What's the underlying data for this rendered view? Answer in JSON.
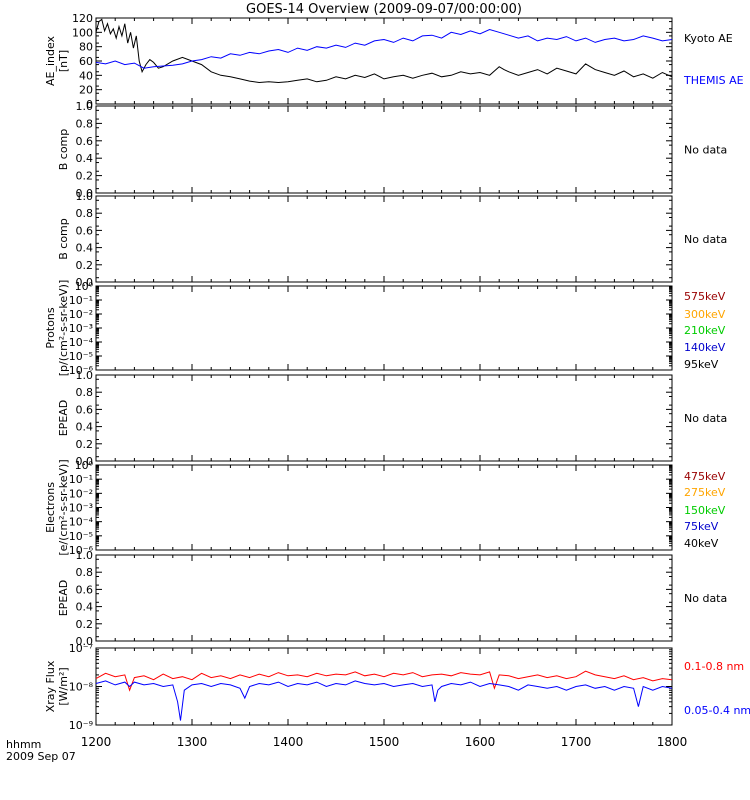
{
  "title": "GOES-14 Overview (2009-09-07/00:00:00)",
  "colors": {
    "black": "#000000",
    "blue": "#0000ff",
    "red": "#ff0000",
    "darkred": "#990000",
    "orange": "#ffa500",
    "green": "#00cc00"
  },
  "x_axis": {
    "ticks": [
      "1200",
      "1300",
      "1400",
      "1500",
      "1600",
      "1700",
      "1800"
    ],
    "label_line1": "hhmm",
    "label_line2": "2009 Sep 07"
  },
  "no_data_text": "No data",
  "panels": [
    {
      "id": "ae",
      "ylabel1": "AE_index",
      "ylabel2": "[nT]",
      "ticks": [
        "0",
        "20",
        "40",
        "60",
        "80",
        "100",
        "120"
      ],
      "legend": [
        {
          "text": "Kyoto AE",
          "color": "#000000"
        },
        {
          "text": "THEMIS AE",
          "color": "#0000ff"
        }
      ]
    },
    {
      "id": "bcomp1",
      "ylabel1": "B comp",
      "ticks": [
        "0.0",
        "0.2",
        "0.4",
        "0.6",
        "0.8",
        "1.0"
      ],
      "no_data": true
    },
    {
      "id": "bcomp2",
      "ylabel1": "B comp",
      "ticks": [
        "0.0",
        "0.2",
        "0.4",
        "0.6",
        "0.8",
        "1.0"
      ],
      "no_data": true
    },
    {
      "id": "protons",
      "ylabel1": "Protons",
      "ylabel2": "[p/(cm²-s-sr-keV)]",
      "ticks": [
        "10⁻⁶",
        "10⁻⁵",
        "10⁻⁴",
        "10⁻³",
        "10⁻²",
        "10⁻¹",
        "10⁰"
      ],
      "legend": [
        {
          "text": "575keV",
          "color": "#990000"
        },
        {
          "text": "300keV",
          "color": "#ffa500"
        },
        {
          "text": "210keV",
          "color": "#00cc00"
        },
        {
          "text": "140keV",
          "color": "#0000cc"
        },
        {
          "text": "95keV",
          "color": "#000000"
        }
      ]
    },
    {
      "id": "epead1",
      "ylabel1": "EPEAD",
      "ticks": [
        "0.0",
        "0.2",
        "0.4",
        "0.6",
        "0.8",
        "1.0"
      ],
      "no_data": true
    },
    {
      "id": "electrons",
      "ylabel1": "Electrons",
      "ylabel2": "[e/(cm²-s-sr-keV)]",
      "ticks": [
        "10⁻⁶",
        "10⁻⁵",
        "10⁻⁴",
        "10⁻³",
        "10⁻²",
        "10⁻¹",
        "10⁰"
      ],
      "legend": [
        {
          "text": "475keV",
          "color": "#990000"
        },
        {
          "text": "275keV",
          "color": "#ffa500"
        },
        {
          "text": "150keV",
          "color": "#00cc00"
        },
        {
          "text": "75keV",
          "color": "#0000cc"
        },
        {
          "text": "40keV",
          "color": "#000000"
        }
      ]
    },
    {
      "id": "epead2",
      "ylabel1": "EPEAD",
      "ticks": [
        "0.0",
        "0.2",
        "0.4",
        "0.6",
        "0.8",
        "1.0"
      ],
      "no_data": true
    },
    {
      "id": "xray",
      "ylabel1": "Xray Flux",
      "ylabel2": "[W/m²]",
      "ticks": [
        "10⁻⁹",
        "10⁻⁸",
        "10⁻⁷"
      ],
      "legend": [
        {
          "text": "0.1-0.8 nm",
          "color": "#ff0000"
        },
        {
          "text": "0.05-0.4 nm",
          "color": "#0000ff"
        }
      ]
    }
  ],
  "chart_data": [
    {
      "type": "line",
      "title": "GOES-14 Overview (2009-09-07/00:00:00)",
      "xlabel": "hhmm",
      "ylabel": "AE_index [nT]",
      "xlim": [
        1200,
        1800
      ],
      "ylim": [
        0,
        120
      ],
      "series": [
        {
          "name": "Kyoto AE",
          "color": "#000000",
          "x": [
            1200,
            1203,
            1206,
            1209,
            1212,
            1215,
            1218,
            1221,
            1224,
            1227,
            1230,
            1233,
            1236,
            1239,
            1242,
            1245,
            1248,
            1252,
            1256,
            1260,
            1265,
            1270,
            1280,
            1290,
            1300,
            1310,
            1320,
            1330,
            1340,
            1350,
            1360,
            1370,
            1380,
            1390,
            1400,
            1410,
            1420,
            1430,
            1440,
            1450,
            1460,
            1470,
            1480,
            1490,
            1500,
            1510,
            1520,
            1530,
            1540,
            1550,
            1560,
            1570,
            1580,
            1590,
            1600,
            1610,
            1615,
            1620,
            1625,
            1630,
            1640,
            1650,
            1660,
            1670,
            1680,
            1690,
            1700,
            1710,
            1720,
            1730,
            1740,
            1750,
            1760,
            1770,
            1780,
            1790,
            1800
          ],
          "y": [
            100,
            115,
            118,
            102,
            112,
            98,
            105,
            92,
            108,
            95,
            112,
            85,
            100,
            78,
            95,
            60,
            45,
            55,
            62,
            58,
            50,
            52,
            60,
            65,
            60,
            55,
            45,
            40,
            38,
            35,
            32,
            30,
            31,
            30,
            31,
            33,
            35,
            31,
            33,
            38,
            35,
            40,
            37,
            42,
            35,
            38,
            40,
            36,
            40,
            43,
            38,
            40,
            45,
            42,
            44,
            40,
            46,
            52,
            48,
            45,
            40,
            44,
            48,
            42,
            50,
            46,
            42,
            56,
            48,
            44,
            40,
            46,
            38,
            42,
            36,
            44,
            38
          ]
        },
        {
          "name": "THEMIS AE",
          "color": "#0000ff",
          "x": [
            1200,
            1210,
            1220,
            1230,
            1240,
            1250,
            1260,
            1270,
            1280,
            1290,
            1300,
            1310,
            1320,
            1330,
            1340,
            1350,
            1360,
            1370,
            1380,
            1390,
            1400,
            1410,
            1420,
            1430,
            1440,
            1450,
            1460,
            1470,
            1480,
            1490,
            1500,
            1510,
            1520,
            1530,
            1540,
            1550,
            1560,
            1570,
            1580,
            1590,
            1600,
            1610,
            1620,
            1630,
            1640,
            1650,
            1660,
            1670,
            1680,
            1690,
            1700,
            1710,
            1720,
            1730,
            1740,
            1750,
            1760,
            1770,
            1780,
            1790,
            1800
          ],
          "y": [
            58,
            56,
            60,
            55,
            57,
            50,
            52,
            53,
            54,
            56,
            60,
            62,
            66,
            64,
            70,
            68,
            72,
            70,
            74,
            76,
            72,
            78,
            75,
            80,
            78,
            82,
            79,
            85,
            82,
            88,
            90,
            86,
            92,
            88,
            95,
            96,
            92,
            100,
            97,
            102,
            98,
            104,
            100,
            96,
            92,
            95,
            88,
            92,
            90,
            94,
            88,
            92,
            86,
            90,
            92,
            88,
            90,
            95,
            92,
            88,
            90
          ]
        }
      ]
    },
    {
      "type": "line",
      "ylabel": "B comp",
      "ylim": [
        0,
        1
      ],
      "series": [],
      "note": "No data"
    },
    {
      "type": "line",
      "ylabel": "B comp",
      "ylim": [
        0,
        1
      ],
      "series": [],
      "note": "No data"
    },
    {
      "type": "line",
      "ylabel": "Protons [p/(cm²-s-sr-keV)]",
      "yscale": "log",
      "ylim": [
        1e-06,
        1
      ],
      "series": [
        {
          "name": "575keV",
          "color": "#990000",
          "values": []
        },
        {
          "name": "300keV",
          "color": "#ffa500",
          "values": []
        },
        {
          "name": "210keV",
          "color": "#00cc00",
          "values": []
        },
        {
          "name": "140keV",
          "color": "#0000cc",
          "values": []
        },
        {
          "name": "95keV",
          "color": "#000000",
          "values": []
        }
      ]
    },
    {
      "type": "line",
      "ylabel": "EPEAD",
      "ylim": [
        0,
        1
      ],
      "series": [],
      "note": "No data"
    },
    {
      "type": "line",
      "ylabel": "Electrons [e/(cm²-s-sr-keV)]",
      "yscale": "log",
      "ylim": [
        1e-06,
        1
      ],
      "series": [
        {
          "name": "475keV",
          "color": "#990000",
          "values": []
        },
        {
          "name": "275keV",
          "color": "#ffa500",
          "values": []
        },
        {
          "name": "150keV",
          "color": "#00cc00",
          "values": []
        },
        {
          "name": "75keV",
          "color": "#0000cc",
          "values": []
        },
        {
          "name": "40keV",
          "color": "#000000",
          "values": []
        }
      ]
    },
    {
      "type": "line",
      "ylabel": "EPEAD",
      "ylim": [
        0,
        1
      ],
      "series": [],
      "note": "No data"
    },
    {
      "type": "line",
      "xlabel": "hhmm",
      "ylabel": "Xray Flux [W/m²]",
      "yscale": "log",
      "xlim": [
        1200,
        1800
      ],
      "ylim": [
        1e-09,
        1e-07
      ],
      "series": [
        {
          "name": "0.1-0.8 nm",
          "color": "#ff0000",
          "x": [
            1200,
            1210,
            1220,
            1230,
            1235,
            1240,
            1250,
            1260,
            1270,
            1280,
            1290,
            1300,
            1310,
            1320,
            1330,
            1340,
            1350,
            1360,
            1370,
            1380,
            1390,
            1400,
            1410,
            1420,
            1430,
            1440,
            1450,
            1460,
            1470,
            1480,
            1490,
            1500,
            1510,
            1520,
            1530,
            1540,
            1550,
            1560,
            1570,
            1580,
            1590,
            1600,
            1610,
            1615,
            1620,
            1630,
            1640,
            1650,
            1660,
            1670,
            1680,
            1690,
            1700,
            1710,
            1720,
            1730,
            1740,
            1750,
            1760,
            1770,
            1780,
            1790,
            1800
          ],
          "y": [
            1.6e-08,
            2.2e-08,
            1.8e-08,
            2e-08,
            8e-09,
            1.7e-08,
            1.9e-08,
            1.5e-08,
            2.1e-08,
            1.6e-08,
            1.8e-08,
            1.5e-08,
            2.2e-08,
            1.7e-08,
            1.9e-08,
            1.6e-08,
            2e-08,
            1.7e-08,
            2.1e-08,
            1.8e-08,
            2.3e-08,
            1.9e-08,
            2e-08,
            1.8e-08,
            2.2e-08,
            1.9e-08,
            2.1e-08,
            2e-08,
            2.4e-08,
            1.9e-08,
            2.1e-08,
            1.8e-08,
            2.2e-08,
            2e-08,
            2.3e-08,
            1.8e-08,
            2e-08,
            2.1e-08,
            1.9e-08,
            2.3e-08,
            2.1e-08,
            2e-08,
            2.4e-08,
            9e-09,
            2e-08,
            1.9e-08,
            1.6e-08,
            1.8e-08,
            2e-08,
            1.7e-08,
            1.9e-08,
            1.6e-08,
            1.8e-08,
            2.5e-08,
            2e-08,
            1.8e-08,
            1.6e-08,
            1.9e-08,
            1.5e-08,
            1.7e-08,
            1.4e-08,
            1.6e-08,
            1.5e-08
          ]
        },
        {
          "name": "0.05-0.4 nm",
          "color": "#0000ff",
          "x": [
            1200,
            1210,
            1220,
            1230,
            1235,
            1240,
            1250,
            1260,
            1270,
            1280,
            1285,
            1288,
            1292,
            1300,
            1310,
            1320,
            1330,
            1340,
            1350,
            1355,
            1360,
            1370,
            1380,
            1390,
            1400,
            1410,
            1420,
            1430,
            1440,
            1450,
            1460,
            1470,
            1480,
            1490,
            1500,
            1510,
            1520,
            1530,
            1540,
            1550,
            1553,
            1556,
            1560,
            1570,
            1580,
            1590,
            1600,
            1610,
            1620,
            1630,
            1640,
            1650,
            1660,
            1670,
            1680,
            1690,
            1700,
            1710,
            1720,
            1730,
            1740,
            1750,
            1760,
            1765,
            1770,
            1780,
            1790,
            1800
          ],
          "y": [
            1.2e-08,
            1.4e-08,
            1.1e-08,
            1.3e-08,
            1e-08,
            1.3e-08,
            1.1e-08,
            1.2e-08,
            1e-08,
            1.1e-08,
            4e-09,
            1.3e-09,
            8e-09,
            1.1e-08,
            1.2e-08,
            1e-08,
            1.2e-08,
            1.1e-08,
            9e-09,
            5e-09,
            1e-08,
            1.2e-08,
            1.1e-08,
            1.3e-08,
            1e-08,
            1.2e-08,
            1.1e-08,
            1.3e-08,
            1e-08,
            1.2e-08,
            1.1e-08,
            1.4e-08,
            1.2e-08,
            1.1e-08,
            1.2e-08,
            1e-08,
            1.1e-08,
            1.2e-08,
            1e-08,
            1.1e-08,
            4e-09,
            8e-09,
            1e-08,
            1.2e-08,
            1.1e-08,
            1.3e-08,
            1e-08,
            1.2e-08,
            1.1e-08,
            1e-08,
            8e-09,
            1.1e-08,
            1e-08,
            9e-09,
            1e-08,
            8e-09,
            1e-08,
            1.1e-08,
            9e-09,
            1e-08,
            8e-09,
            1e-08,
            9e-09,
            3e-09,
            1e-08,
            8e-09,
            1e-08,
            9e-09
          ]
        }
      ]
    }
  ]
}
